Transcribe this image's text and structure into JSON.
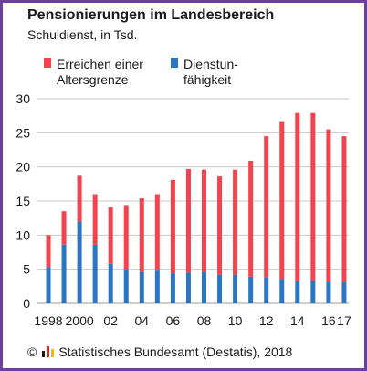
{
  "title": "Pensionierungen im Landesbereich",
  "subtitle": "Schuldienst, in Tsd.",
  "footer": {
    "copyright": "©",
    "text": "Statistisches Bundesamt (Destatis), 2018"
  },
  "colors": {
    "red": "#f2434e",
    "blue": "#2a76c4",
    "grid": "#c8c8c8",
    "text": "#1a1a1a",
    "frame": "#6a3fa0"
  },
  "chart_data": {
    "type": "bar",
    "stacked": true,
    "x": [
      1998,
      1999,
      2000,
      2001,
      2002,
      2003,
      2004,
      2005,
      2006,
      2007,
      2008,
      2009,
      2010,
      2011,
      2012,
      2013,
      2014,
      2015,
      2016,
      2017
    ],
    "tick_labels": [
      "1998",
      "",
      "2000",
      "",
      "02",
      "",
      "04",
      "",
      "06",
      "",
      "08",
      "",
      "10",
      "",
      "12",
      "",
      "14",
      "",
      "16",
      "17"
    ],
    "series": [
      {
        "name": "Dienstunfähigkeit",
        "color": "#2a76c4",
        "values": [
          5.3,
          8.6,
          12.0,
          8.6,
          5.8,
          5.0,
          4.6,
          4.8,
          4.4,
          4.5,
          4.6,
          4.2,
          4.2,
          3.9,
          3.8,
          3.6,
          3.3,
          3.4,
          3.2,
          3.1
        ]
      },
      {
        "name": "Erreichen einer Altersgrenze",
        "color": "#f2434e",
        "values": [
          4.7,
          4.9,
          6.7,
          7.4,
          8.3,
          9.4,
          10.8,
          11.2,
          13.7,
          15.2,
          15.0,
          14.4,
          15.4,
          17.0,
          20.7,
          23.1,
          24.6,
          24.5,
          22.3,
          21.4
        ]
      }
    ],
    "legend": [
      {
        "label_lines": [
          "Erreichen einer",
          "Altersgrenze"
        ],
        "color": "#f2434e"
      },
      {
        "label_lines": [
          "Dienstun-",
          "fähigkeit"
        ],
        "color": "#2a76c4"
      }
    ],
    "legend_position": "top",
    "yticks": [
      0,
      5,
      10,
      15,
      20,
      25,
      30
    ],
    "ylim": [
      0,
      30
    ],
    "xlabel": "",
    "ylabel": "",
    "grid": true
  }
}
